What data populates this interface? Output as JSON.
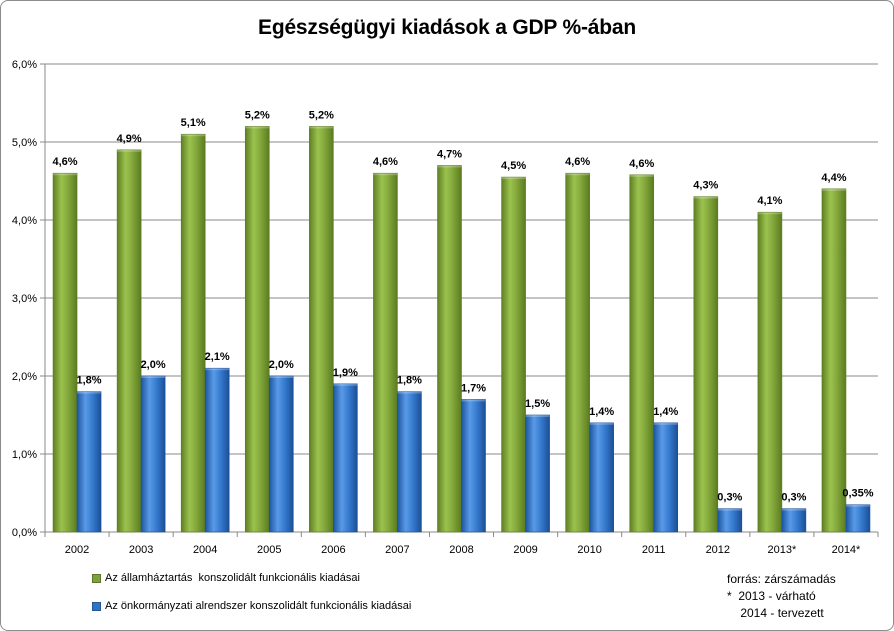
{
  "chart_data": {
    "type": "bar",
    "title": "Egészségügyi kiadások a GDP %-ában",
    "categories": [
      "2002",
      "2003",
      "2004",
      "2005",
      "2006",
      "2007",
      "2008",
      "2009",
      "2010",
      "2011",
      "2012",
      "2013*",
      "2014*"
    ],
    "series": [
      {
        "name": "Az államháztartás  konszolidált funkcionális kiadásai",
        "color": "#7ea13a",
        "values": [
          4.6,
          4.9,
          5.1,
          5.2,
          5.2,
          4.6,
          4.7,
          4.55,
          4.6,
          4.58,
          4.3,
          4.1,
          4.4
        ],
        "labels": [
          "4,6%",
          "4,9%",
          "5,1%",
          "5,2%",
          "5,2%",
          "4,6%",
          "4,7%",
          "4,5%",
          "4,6%",
          "4,6%",
          "4,3%",
          "4,1%",
          "4,4%"
        ]
      },
      {
        "name": "Az önkormányzati alrendszer konszolidált funkcionális kiadásai",
        "color": "#2f73c4",
        "values": [
          1.8,
          2.0,
          2.1,
          2.0,
          1.9,
          1.8,
          1.7,
          1.5,
          1.4,
          1.4,
          0.3,
          0.3,
          0.35
        ],
        "labels": [
          "1,8%",
          "2,0%",
          "2,1%",
          "2,0%",
          "1,9%",
          "1,8%",
          "1,7%",
          "1,5%",
          "1,4%",
          "1,4%",
          "0,3%",
          "0,3%",
          "0,35%"
        ]
      }
    ],
    "ylim": [
      0,
      6
    ],
    "yticks": [
      "0,0%",
      "1,0%",
      "2,0%",
      "3,0%",
      "4,0%",
      "5,0%",
      "6,0%"
    ],
    "grid": true,
    "legend_position": "bottom-left",
    "xlabel": "",
    "ylabel": ""
  },
  "source": {
    "line1": "forrás: zárszámadás",
    "line2": "*  2013 - várható",
    "line3": "    2014 - tervezett"
  }
}
